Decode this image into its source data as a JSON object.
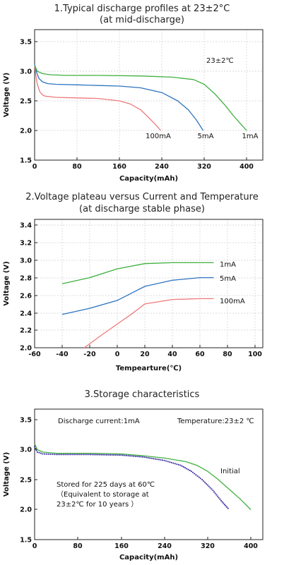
{
  "chart_data": [
    {
      "type": "line",
      "title": "1.Typical discharge profiles at 23±2°C",
      "subtitle": "(at mid-discharge)",
      "xlabel": "Capacity(mAh)",
      "ylabel": "Voltage (V)",
      "xlim": [
        0,
        420
      ],
      "ylim": [
        1.5,
        3.6
      ],
      "xticks": [
        "0",
        "80",
        "160",
        "240",
        "320",
        "400"
      ],
      "yticks": [
        "1.5",
        "2.0",
        "2.5",
        "3.0",
        "3.5"
      ],
      "grid": true,
      "annotation": "23±2℃",
      "series": [
        {
          "name": "100mA",
          "color": "#ef7a7a",
          "x": [
            0,
            2,
            5,
            10,
            15,
            20,
            40,
            80,
            120,
            160,
            180,
            200,
            215,
            228,
            238
          ],
          "y": [
            3.1,
            2.95,
            2.78,
            2.65,
            2.6,
            2.58,
            2.56,
            2.55,
            2.54,
            2.5,
            2.45,
            2.35,
            2.22,
            2.1,
            2.0
          ]
        },
        {
          "name": "5mA",
          "color": "#2f74c0",
          "x": [
            0,
            3,
            8,
            15,
            25,
            40,
            80,
            120,
            160,
            200,
            240,
            270,
            290,
            305,
            318
          ],
          "y": [
            3.12,
            3.0,
            2.88,
            2.82,
            2.79,
            2.78,
            2.77,
            2.76,
            2.75,
            2.72,
            2.64,
            2.5,
            2.35,
            2.18,
            2.0
          ]
        },
        {
          "name": "1mA",
          "color": "#3fb03f",
          "x": [
            0,
            5,
            15,
            30,
            60,
            120,
            200,
            260,
            300,
            320,
            340,
            360,
            375,
            390,
            400
          ],
          "y": [
            3.1,
            3.0,
            2.96,
            2.94,
            2.93,
            2.93,
            2.92,
            2.9,
            2.86,
            2.78,
            2.62,
            2.42,
            2.25,
            2.1,
            2.0
          ]
        }
      ]
    },
    {
      "type": "line",
      "title": "2.Voltage plateau versus Current and Temperature",
      "subtitle": "(at discharge stable phase)",
      "xlabel": "Tempearture(℃)",
      "ylabel": "Voltage (V)",
      "xlim": [
        -60,
        110
      ],
      "ylim": [
        2.0,
        3.45
      ],
      "xticks": [
        "-60",
        "-40",
        "-20",
        "0",
        "20",
        "40",
        "60",
        "80",
        "100"
      ],
      "yticks": [
        "2.0",
        "2.2",
        "2.4",
        "2.6",
        "2.8",
        "3.0",
        "3.2",
        "3.4"
      ],
      "grid": true,
      "series": [
        {
          "name": "1mA",
          "color": "#3fb03f",
          "x": [
            -40,
            -20,
            0,
            20,
            40,
            60,
            70
          ],
          "y": [
            2.73,
            2.8,
            2.9,
            2.96,
            2.97,
            2.97,
            2.97
          ]
        },
        {
          "name": "5mA",
          "color": "#2f74c0",
          "x": [
            -40,
            -20,
            0,
            10,
            20,
            40,
            60,
            70
          ],
          "y": [
            2.38,
            2.45,
            2.54,
            2.62,
            2.7,
            2.77,
            2.8,
            2.8
          ]
        },
        {
          "name": "100mA",
          "color": "#ef7a7a",
          "x": [
            -24,
            -10,
            0,
            10,
            20,
            40,
            60,
            70
          ],
          "y": [
            2.0,
            2.16,
            2.27,
            2.38,
            2.5,
            2.55,
            2.56,
            2.56
          ]
        }
      ]
    },
    {
      "type": "line",
      "title": "3.Storage characteristics",
      "xlabel": "Capacity(mAh)",
      "ylabel": "Voltage (V)",
      "xlim": [
        0,
        420
      ],
      "ylim": [
        1.5,
        3.6
      ],
      "xticks": [
        "0",
        "80",
        "160",
        "240",
        "320",
        "400"
      ],
      "yticks": [
        "1.5",
        "2.0",
        "2.5",
        "3.0",
        "3.5"
      ],
      "grid": false,
      "annotations": {
        "current": "Discharge current:1mA",
        "temperature": "Temperature:23±2 ℃",
        "storage": [
          "Stored for 225 days at 60℃",
          "（Equivalent to storage at",
          "23±2℃ for 10 years  ）"
        ]
      },
      "series": [
        {
          "name": "Initial",
          "color": "#3fb03f",
          "style": "solid",
          "x": [
            0,
            5,
            15,
            40,
            100,
            160,
            200,
            240,
            280,
            300,
            320,
            340,
            360,
            380,
            400
          ],
          "y": [
            3.1,
            3.0,
            2.96,
            2.94,
            2.94,
            2.93,
            2.9,
            2.86,
            2.8,
            2.74,
            2.64,
            2.5,
            2.34,
            2.18,
            2.0
          ]
        },
        {
          "color": "#4a3fa8",
          "style": "dotted",
          "x": [
            0,
            5,
            15,
            40,
            100,
            160,
            200,
            240,
            270,
            290,
            310,
            330,
            345,
            360
          ],
          "y": [
            3.05,
            2.96,
            2.93,
            2.92,
            2.92,
            2.91,
            2.88,
            2.82,
            2.74,
            2.64,
            2.5,
            2.32,
            2.15,
            2.0
          ]
        }
      ]
    }
  ]
}
